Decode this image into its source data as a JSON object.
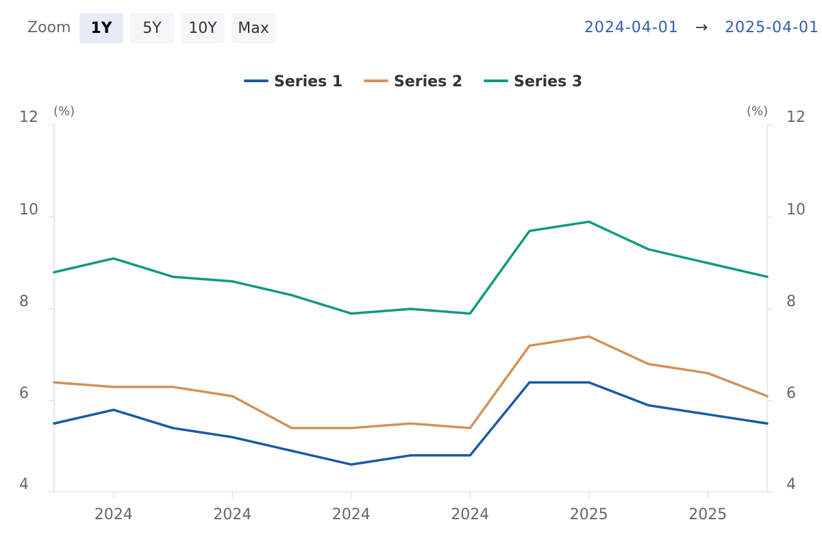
{
  "toolbar": {
    "zoom_label": "Zoom",
    "buttons": [
      {
        "label": "1Y",
        "active": true
      },
      {
        "label": "5Y",
        "active": false
      },
      {
        "label": "10Y",
        "active": false
      },
      {
        "label": "Max",
        "active": false
      }
    ],
    "range_from": "2024-04-01",
    "range_arrow": "→",
    "range_to": "2025-04-01"
  },
  "colors": {
    "series": [
      "#1a5aa6",
      "#d4915a",
      "#119980"
    ],
    "axis": "#ccd6eb",
    "text": "#666666"
  },
  "chart_data": {
    "type": "line",
    "title": "",
    "legend_position": "top-center",
    "left_axis": {
      "unit": "(%)",
      "ylim": [
        4,
        12
      ],
      "ticks": [
        4,
        6,
        8,
        10,
        12
      ]
    },
    "right_axis": {
      "unit": "(%)",
      "ylim": [
        4,
        12
      ],
      "ticks": [
        4,
        6,
        8,
        10,
        12
      ]
    },
    "x_tick_labels": [
      "2024",
      "2024",
      "2024",
      "2024",
      "2025",
      "2025"
    ],
    "x": [
      "2024-04-01",
      "2024-05-01",
      "2024-06-01",
      "2024-07-01",
      "2024-08-01",
      "2024-09-01",
      "2024-10-01",
      "2024-11-01",
      "2024-12-01",
      "2025-01-01",
      "2025-02-01",
      "2025-03-01",
      "2025-04-01"
    ],
    "series": [
      {
        "name": "Series 1",
        "values": [
          5.5,
          5.8,
          5.4,
          5.2,
          4.9,
          4.6,
          4.8,
          4.8,
          6.4,
          6.4,
          5.9,
          5.7,
          5.5
        ]
      },
      {
        "name": "Series 2",
        "values": [
          6.4,
          6.3,
          6.3,
          6.1,
          5.4,
          5.4,
          5.5,
          5.4,
          7.2,
          7.4,
          6.8,
          6.6,
          6.1
        ]
      },
      {
        "name": "Series 3",
        "values": [
          8.8,
          9.1,
          8.7,
          8.6,
          8.3,
          7.9,
          8.0,
          7.9,
          9.7,
          9.9,
          9.3,
          9.0,
          8.7
        ]
      }
    ]
  }
}
